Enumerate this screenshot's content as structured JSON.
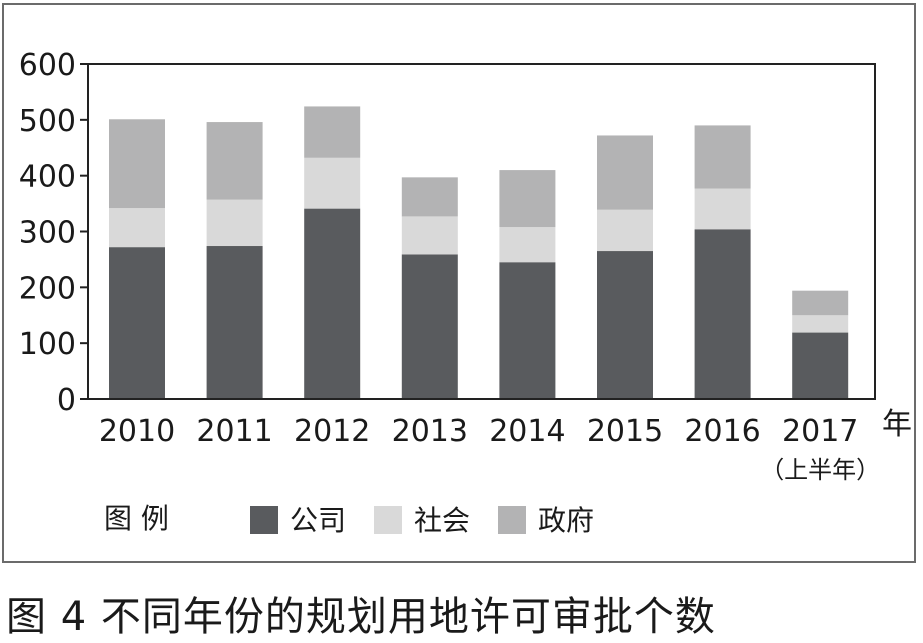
{
  "caption": "图 4  不同年份的规划用地许可审批个数",
  "chart_data": {
    "type": "bar",
    "stacked": true,
    "categories": [
      "2010",
      "2011",
      "2012",
      "2013",
      "2014",
      "2015",
      "2016",
      "2017"
    ],
    "category_sublabels": {
      "2017": "（上半年）"
    },
    "xlabel": "年",
    "ylabel": "",
    "ylim": [
      0,
      600
    ],
    "yticks": [
      0,
      100,
      200,
      300,
      400,
      500,
      600
    ],
    "legend_title": "图 例",
    "legend_position": "bottom-left",
    "grid": false,
    "series": [
      {
        "name": "公司",
        "color": "#595b5e",
        "values": [
          272,
          274,
          341,
          259,
          245,
          265,
          304,
          119
        ]
      },
      {
        "name": "社会",
        "color": "#d9d9d9",
        "values": [
          70,
          83,
          91,
          68,
          63,
          74,
          73,
          31
        ]
      },
      {
        "name": "政府",
        "color": "#b3b3b4",
        "values": [
          159,
          139,
          92,
          70,
          102,
          133,
          113,
          44
        ]
      }
    ]
  }
}
